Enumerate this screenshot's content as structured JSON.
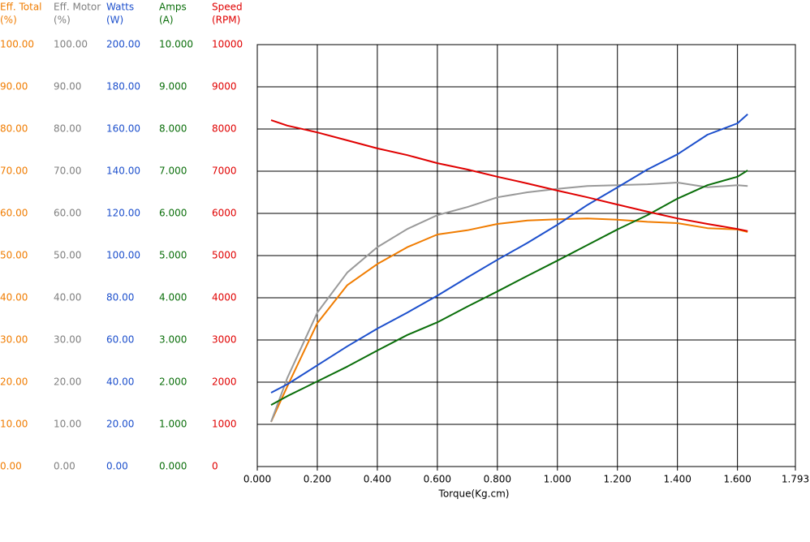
{
  "chart_data": {
    "type": "line",
    "x_label": "Torque(Kg.cm)",
    "xlim": [
      0,
      1.793
    ],
    "xticks": [
      {
        "value": 0,
        "label": "0.000"
      },
      {
        "value": 0.2,
        "label": "0.200"
      },
      {
        "value": 0.4,
        "label": "0.400"
      },
      {
        "value": 0.6,
        "label": "0.600"
      },
      {
        "value": 0.8,
        "label": "0.800"
      },
      {
        "value": 1.0,
        "label": "1.000"
      },
      {
        "value": 1.2,
        "label": "1.200"
      },
      {
        "value": 1.4,
        "label": "1.400"
      },
      {
        "value": 1.6,
        "label": "1.600"
      },
      1.793
    ],
    "grid": true,
    "axes": [
      {
        "title": "Eff. Total",
        "unit": "(%)",
        "color": "#f07c00",
        "ylim": [
          0,
          100
        ],
        "yticks": [
          {
            "value": 0,
            "label": "0.00"
          },
          {
            "value": 10,
            "label": "10.00"
          },
          {
            "value": 20,
            "label": "20.00"
          },
          {
            "value": 30,
            "label": "30.00"
          },
          {
            "value": 40,
            "label": "40.00"
          },
          {
            "value": 50,
            "label": "50.00"
          },
          {
            "value": 60,
            "label": "60.00"
          },
          {
            "value": 70,
            "label": "70.00"
          },
          {
            "value": 80,
            "label": "80.00"
          },
          {
            "value": 90,
            "label": "90.00"
          },
          {
            "value": 100,
            "label": "100.00"
          }
        ]
      },
      {
        "title": "Eff. Motor",
        "unit": "(%)",
        "color": "#808080",
        "ylim": [
          0,
          100
        ],
        "yticks": [
          {
            "value": 0,
            "label": "0.00"
          },
          {
            "value": 10,
            "label": "10.00"
          },
          {
            "value": 20,
            "label": "20.00"
          },
          {
            "value": 30,
            "label": "30.00"
          },
          {
            "value": 40,
            "label": "40.00"
          },
          {
            "value": 50,
            "label": "50.00"
          },
          {
            "value": 60,
            "label": "60.00"
          },
          {
            "value": 70,
            "label": "70.00"
          },
          {
            "value": 80,
            "label": "80.00"
          },
          {
            "value": 90,
            "label": "90.00"
          },
          {
            "value": 100,
            "label": "100.00"
          }
        ]
      },
      {
        "title": "Watts",
        "unit": "(W)",
        "color": "#1c4fcc",
        "ylim": [
          0,
          200
        ],
        "yticks": [
          {
            "value": 0,
            "label": "0.00"
          },
          {
            "value": 20,
            "label": "20.00"
          },
          {
            "value": 40,
            "label": "40.00"
          },
          {
            "value": 60,
            "label": "60.00"
          },
          {
            "value": 80,
            "label": "80.00"
          },
          {
            "value": 100,
            "label": "100.00"
          },
          {
            "value": 120,
            "label": "120.00"
          },
          {
            "value": 140,
            "label": "140.00"
          },
          {
            "value": 160,
            "label": "160.00"
          },
          {
            "value": 180,
            "label": "180.00"
          },
          {
            "value": 200,
            "label": "200.00"
          }
        ]
      },
      {
        "title": "Amps",
        "unit": "(A)",
        "color": "#0a6e0a",
        "ylim": [
          0,
          10
        ],
        "yticks": [
          {
            "value": 0,
            "label": "0.000"
          },
          {
            "value": 1,
            "label": "1.000"
          },
          {
            "value": 2,
            "label": "2.000"
          },
          {
            "value": 3,
            "label": "3.000"
          },
          {
            "value": 4,
            "label": "4.000"
          },
          {
            "value": 5,
            "label": "5.000"
          },
          {
            "value": 6,
            "label": "6.000"
          },
          {
            "value": 7,
            "label": "7.000"
          },
          {
            "value": 8,
            "label": "8.000"
          },
          {
            "value": 9,
            "label": "9.000"
          },
          {
            "value": 10,
            "label": "10.000"
          }
        ]
      },
      {
        "title": "Speed",
        "unit": "(RPM)",
        "color": "#e00000",
        "ylim": [
          0,
          10000
        ],
        "yticks": [
          0,
          1000,
          2000,
          3000,
          4000,
          5000,
          6000,
          7000,
          8000,
          9000,
          10000
        ]
      }
    ],
    "x": [
      0.046,
      0.1,
      0.2,
      0.3,
      0.4,
      0.5,
      0.6,
      0.7,
      0.8,
      0.9,
      1.0,
      1.1,
      1.2,
      1.3,
      1.4,
      1.5,
      1.6,
      1.634
    ],
    "series": [
      {
        "axis": 0,
        "color": "#f07c00",
        "values": [
          10.6,
          19,
          34,
          43,
          48,
          52,
          55,
          56,
          57.5,
          58.3,
          58.6,
          58.8,
          58.5,
          58,
          57.7,
          56.5,
          56.2,
          55.6
        ]
      },
      {
        "axis": 1,
        "color": "#999999",
        "values": [
          10.6,
          21,
          36.5,
          46,
          52,
          56.3,
          59.6,
          61.5,
          63.8,
          65,
          65.8,
          66.5,
          66.7,
          66.9,
          67.3,
          66.2,
          66.7,
          66.5
        ]
      },
      {
        "axis": 2,
        "color": "#1c4fcc",
        "values": [
          35,
          39,
          48,
          57,
          65.4,
          73,
          81,
          89.6,
          98,
          106,
          114.6,
          124,
          132.3,
          140.8,
          148,
          157.3,
          162.7,
          167
        ]
      },
      {
        "axis": 3,
        "color": "#0a6e0a",
        "values": [
          1.46,
          1.67,
          2.02,
          2.37,
          2.75,
          3.12,
          3.42,
          3.79,
          4.15,
          4.52,
          4.88,
          5.25,
          5.62,
          5.96,
          6.35,
          6.67,
          6.87,
          7.02
        ]
      },
      {
        "axis": 4,
        "color": "#e00000",
        "values": [
          8210,
          8080,
          7920,
          7730,
          7540,
          7380,
          7190,
          7040,
          6870,
          6710,
          6540,
          6380,
          6210,
          6040,
          5880,
          5750,
          5630,
          5580
        ]
      }
    ]
  }
}
